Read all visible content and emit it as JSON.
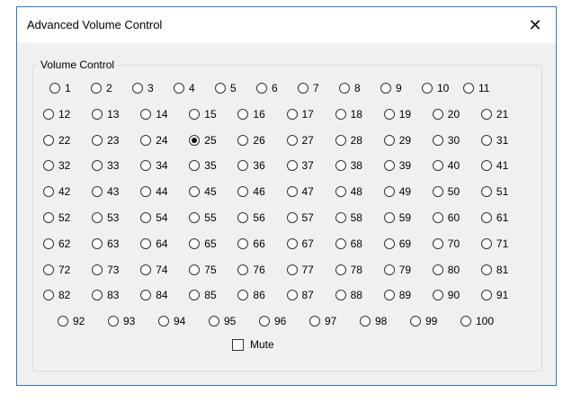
{
  "window": {
    "title": "Advanced Volume Control",
    "close_icon": "close-x-icon"
  },
  "group": {
    "label": "Volume Control"
  },
  "volume_options": [
    "1",
    "2",
    "3",
    "4",
    "5",
    "6",
    "7",
    "8",
    "9",
    "10",
    "11",
    "12",
    "13",
    "14",
    "15",
    "16",
    "17",
    "18",
    "19",
    "20",
    "21",
    "22",
    "23",
    "24",
    "25",
    "26",
    "27",
    "28",
    "29",
    "30",
    "31",
    "32",
    "33",
    "34",
    "35",
    "36",
    "37",
    "38",
    "39",
    "40",
    "41",
    "42",
    "43",
    "44",
    "45",
    "46",
    "47",
    "48",
    "49",
    "50",
    "51",
    "52",
    "53",
    "54",
    "55",
    "56",
    "57",
    "58",
    "59",
    "60",
    "61",
    "62",
    "63",
    "64",
    "65",
    "66",
    "67",
    "68",
    "69",
    "70",
    "71",
    "72",
    "73",
    "74",
    "75",
    "76",
    "77",
    "78",
    "79",
    "80",
    "81",
    "82",
    "83",
    "84",
    "85",
    "86",
    "87",
    "88",
    "89",
    "90",
    "91",
    "92",
    "93",
    "94",
    "95",
    "96",
    "97",
    "98",
    "99",
    "100"
  ],
  "selected": "25",
  "mute": {
    "label": "Mute",
    "checked": false
  },
  "colors": {
    "border": "#2b78d0",
    "background": "#f0f0f0"
  }
}
